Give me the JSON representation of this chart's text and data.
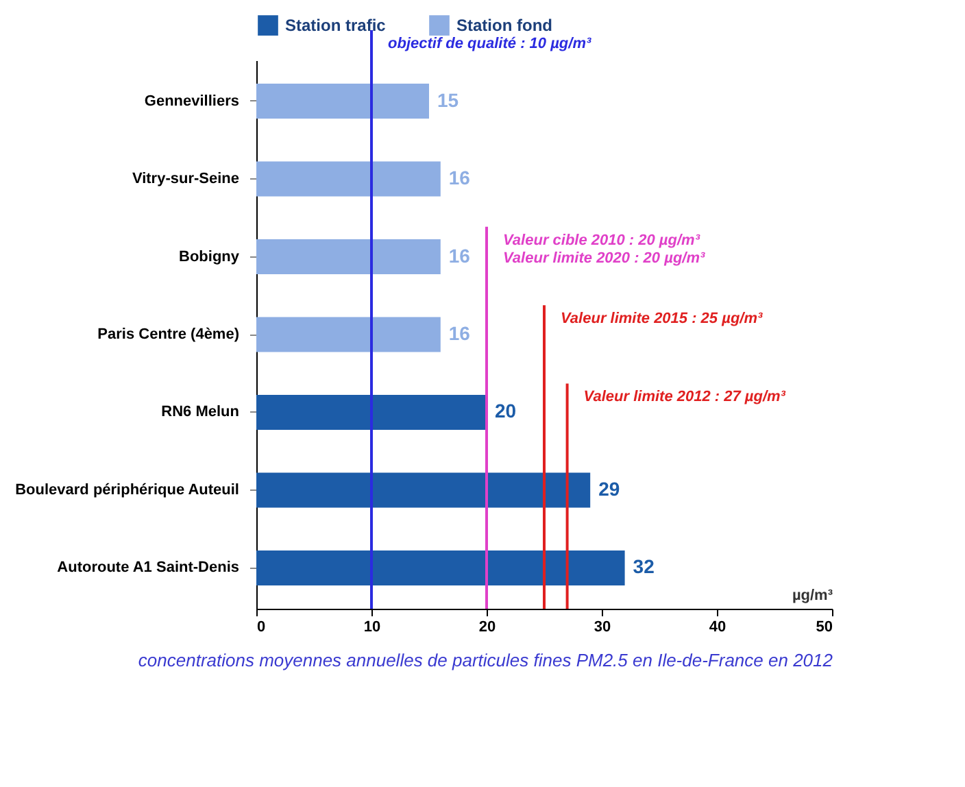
{
  "chart_data": {
    "type": "bar",
    "orientation": "horizontal",
    "title": "concentrations moyennes annuelles de particules fines PM2.5 en Ile-de-France en 2012",
    "xlabel": "µg/m³",
    "categories": [
      "Gennevilliers",
      "Vitry-sur-Seine",
      "Bobigny",
      "Paris Centre (4ème)",
      "RN6 Melun",
      "Boulevard périphérique Auteuil",
      "Autoroute A1 Saint-Denis"
    ],
    "series": [
      {
        "name": "Station trafic",
        "color": "#1c5ca8",
        "values": [
          null,
          null,
          null,
          null,
          20,
          29,
          32
        ]
      },
      {
        "name": "Station fond",
        "color": "#8eaee3",
        "values": [
          15,
          16,
          16,
          16,
          null,
          null,
          null
        ]
      }
    ],
    "xlim": [
      0,
      50
    ],
    "xticks": [
      0,
      10,
      20,
      30,
      40,
      50
    ],
    "data_labels": true,
    "legend": "top",
    "grid": false,
    "ref_lines": [
      {
        "axis": "x",
        "value": 10,
        "label": "objectif de qualité : 10 µg/m³",
        "color": "#2b2be0"
      },
      {
        "axis": "x",
        "value": 20,
        "label": "Valeur cible 2010 : 20 µg/m³\nValeur limite 2020 : 20 µg/m³",
        "color": "#e040c8"
      },
      {
        "axis": "x",
        "value": 25,
        "label": "Valeur limite 2015 : 25 µg/m³",
        "color": "#e02020"
      },
      {
        "axis": "x",
        "value": 27,
        "label": "Valeur limite 2012 : 27 µg/m³",
        "color": "#e02020"
      }
    ]
  }
}
